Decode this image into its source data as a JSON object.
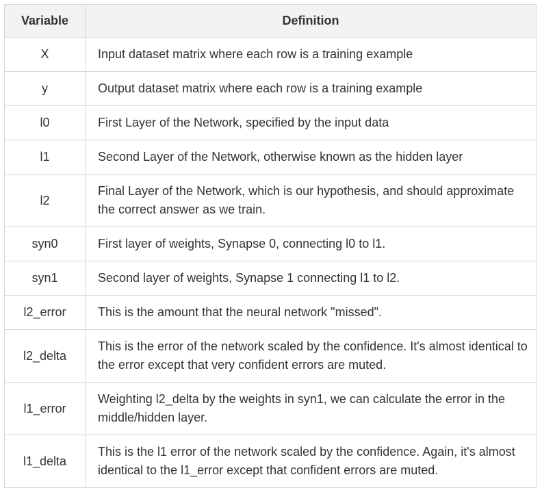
{
  "table": {
    "headers": {
      "variable": "Variable",
      "definition": "Definition"
    },
    "rows": [
      {
        "variable": "X",
        "definition": "Input dataset matrix where each row is a training example"
      },
      {
        "variable": "y",
        "definition": "Output dataset matrix where each row is a training example"
      },
      {
        "variable": "l0",
        "definition": "First Layer of the Network, specified by the input data"
      },
      {
        "variable": "l1",
        "definition": "Second Layer of the Network, otherwise known as the hidden layer"
      },
      {
        "variable": "l2",
        "definition": "Final Layer of the Network, which is our hypothesis, and should approximate the correct answer as we train."
      },
      {
        "variable": "syn0",
        "definition": "First layer of weights, Synapse 0, connecting l0 to l1."
      },
      {
        "variable": "syn1",
        "definition": "Second layer of weights, Synapse 1 connecting l1 to l2."
      },
      {
        "variable": "l2_error",
        "definition": "This is the amount that the neural network \"missed\"."
      },
      {
        "variable": "l2_delta",
        "definition": "This is the error of the network scaled by the confidence. It's almost identical to the error except that very confident errors are muted."
      },
      {
        "variable": "l1_error",
        "definition": "Weighting l2_delta by the weights in syn1, we can calculate the error in the middle/hidden layer."
      },
      {
        "variable": "l1_delta",
        "definition": "This is the l1 error of the network scaled by the confidence. Again, it's almost identical to the l1_error except that confident errors are muted."
      }
    ]
  }
}
